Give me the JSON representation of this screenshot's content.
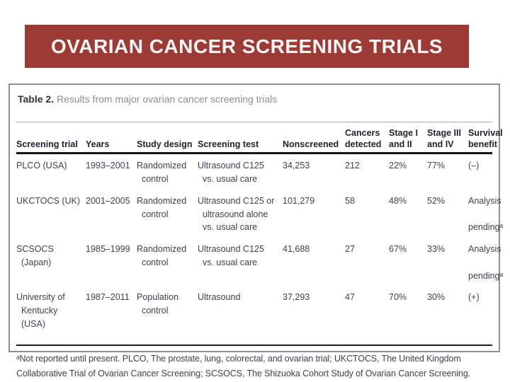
{
  "slide": {
    "title": "OVARIAN CANCER SCREENING TRIALS",
    "banner_color": "#9c3a36"
  },
  "table": {
    "caption_label": "Table 2.",
    "caption_text": "Results from major ovarian cancer screening trials",
    "columns": [
      "Screening trial",
      "Years",
      "Study design",
      "Screening test",
      "Nonscreened",
      "Cancers\ndetected",
      "Stage I\nand II",
      "Stage III\nand IV",
      "Survival\nbenefit"
    ],
    "rows": [
      {
        "cells": [
          "PLCO (USA)",
          "1993–2001",
          "Randomized\n  control",
          "Ultrasound C125\n  vs. usual care",
          "34,253",
          "212",
          "22%",
          "77%",
          "(–)"
        ]
      },
      {
        "cells": [
          "UKCTOCS (UK)",
          "2001–2005",
          "Randomized\n  control",
          "Ultrasound C125 or\n  ultrasound alone\n  vs. usual care",
          "101,279",
          "58",
          "48%",
          "52%",
          "Analysis\n  pendingᵃ"
        ]
      },
      {
        "cells": [
          "SCSOCS\n  (Japan)",
          "1985–1999",
          "Randomized\n  control",
          "Ultrasound C125\n  vs. usual care",
          "41,688",
          "27",
          "67%",
          "33%",
          "Analysis\n  pendingᵃ"
        ]
      },
      {
        "cells": [
          "University of\n  Kentucky\n  (USA)",
          "1987–2011",
          "Population\n  control",
          "Ultrasound",
          "37,293",
          "47",
          "70%",
          "30%",
          "(+)"
        ]
      }
    ],
    "footnote": "ᵃNot reported until present. PLCO, The prostate, lung, colorectal, and ovarian trial; UKCTOCS, The United Kingdom Collaborative Trial of Ovarian Cancer Screening; SCSOCS, The Shizuoka Cohort Study of Ovarian Cancer Screening."
  }
}
